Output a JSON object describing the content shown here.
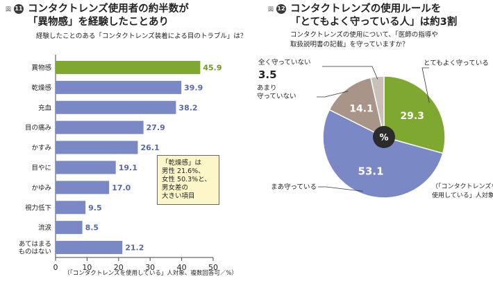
{
  "chart_data": [
    {
      "type": "bar",
      "orientation": "horizontal",
      "figure_label": "図",
      "figure_number": "11",
      "title_lines": [
        "コンタクトレンズ使用者の約半数が",
        "「異物感」を経験したことあり"
      ],
      "subtitle": "経験したことのある「コンタクトレンズ装着による目のトラブル」は？",
      "categories": [
        "異物感",
        "乾燥感",
        "充血",
        "目の痛み",
        "かすみ",
        "目やに",
        "かゆみ",
        "視力低下",
        "流涙",
        "あてはまる\nものはない"
      ],
      "values": [
        45.9,
        39.9,
        38.2,
        27.9,
        26.1,
        19.1,
        17.0,
        9.5,
        8.5,
        21.2
      ],
      "value_labels": [
        "45.9",
        "39.9",
        "38.2",
        "27.9",
        "26.1",
        "19.1",
        "17.0",
        "9.5",
        "8.5",
        "21.2"
      ],
      "xlim": [
        0,
        50
      ],
      "xticks": [
        "0",
        "10",
        "20",
        "30",
        "40",
        "50"
      ],
      "footnote": "（「コンタクトレンズを使用している」人対象、複数回答可／%）",
      "annotation_lines": [
        "「乾燥感」は",
        "男性 21.6%、",
        "女性 50.3%と、",
        "男女差の",
        "大きい項目"
      ],
      "colors": {
        "highlight": "#7fa830",
        "bar": "#7b88c6",
        "highlight_label": "#6e9a1e",
        "label": "#5a67a8"
      }
    },
    {
      "type": "pie",
      "figure_label": "図",
      "figure_number": "12",
      "title_lines": [
        "コンタクトレンズの使用ルールを",
        "「とてもよく守っている人」は約3割"
      ],
      "subtitle_lines": [
        "コンタクトレンズの使用について、「医師の指導や",
        "取扱説明書の記載」を守っていますか？"
      ],
      "center_label": "%",
      "slices": [
        {
          "label": "とてもよく守っている",
          "value": 29.3,
          "value_label": "29.3",
          "color": "#7fa830"
        },
        {
          "label": "まあ守っている",
          "value": 53.1,
          "value_label": "53.1",
          "color": "#7b88c6"
        },
        {
          "label": "あまり\n守っていない",
          "value": 14.1,
          "value_label": "14.1",
          "color": "#a89488"
        },
        {
          "label": "全く守っていない",
          "value": 3.5,
          "value_label": "3.5",
          "color": "#c9c0b8"
        }
      ],
      "footnote_lines": [
        "（「コンタクトレンズを",
        "使用している」人対象）"
      ]
    }
  ]
}
